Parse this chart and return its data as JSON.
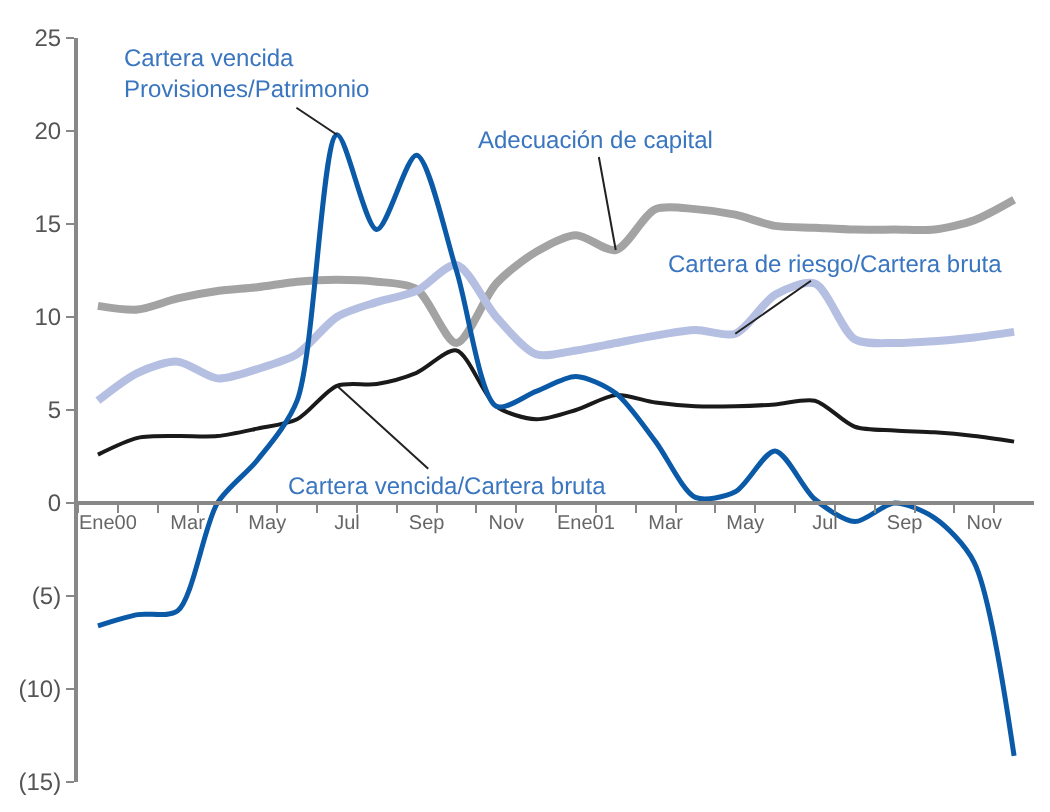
{
  "chart_data": {
    "type": "line",
    "categories": [
      "Ene00",
      null,
      "Mar",
      null,
      "May",
      null,
      "Jul",
      null,
      "Sep",
      null,
      "Nov",
      null,
      "Ene01",
      null,
      "Mar",
      null,
      "May",
      null,
      "Jul",
      null,
      "Sep",
      null,
      "Nov",
      null
    ],
    "series": [
      {
        "name": "Adecuación de capital",
        "color": "#a3a3a3",
        "values": [
          10.6,
          10.4,
          11.0,
          11.4,
          11.6,
          11.9,
          12.0,
          11.9,
          11.5,
          8.6,
          11.8,
          13.5,
          14.4,
          13.6,
          15.8,
          15.8,
          15.5,
          14.9,
          14.8,
          14.7,
          14.7,
          14.7,
          15.2,
          16.3
        ]
      },
      {
        "name": "Cartera de riesgo/Cartera bruta",
        "color": "#b4bfe2",
        "values": [
          5.5,
          7.0,
          7.6,
          6.7,
          7.2,
          8.0,
          10.0,
          10.8,
          11.4,
          12.8,
          10.0,
          8.0,
          8.2,
          8.6,
          9.0,
          9.3,
          9.1,
          11.2,
          11.8,
          8.8,
          8.6,
          8.7,
          8.9,
          9.2
        ]
      },
      {
        "name": "Cartera vencida/Cartera bruta",
        "color": "#1a1a1a",
        "values": [
          2.6,
          3.5,
          3.6,
          3.6,
          4.0,
          4.5,
          6.3,
          6.4,
          7.0,
          8.2,
          5.2,
          4.5,
          5.0,
          5.8,
          5.4,
          5.2,
          5.2,
          5.3,
          5.5,
          4.1,
          3.9,
          3.8,
          3.6,
          3.3
        ]
      },
      {
        "name": "Cartera vencida\nProvisiones/Patrimonio",
        "color": "#0b5aa8",
        "values": [
          -6.6,
          -6.0,
          -5.8,
          0.0,
          2.3,
          5.5,
          19.8,
          14.7,
          18.7,
          12.5,
          5.2,
          6.0,
          6.8,
          5.9,
          3.3,
          0.3,
          0.6,
          2.8,
          0.2,
          -1.0,
          0.0,
          -0.8,
          -3.2,
          -13.6
        ]
      }
    ],
    "ylim": [
      -15,
      25
    ],
    "yticks": [
      25,
      20,
      15,
      10,
      5,
      0,
      {
        "value": -5,
        "label": "(5)"
      },
      {
        "value": -10,
        "label": "(10)"
      },
      {
        "value": -15,
        "label": "(15)"
      }
    ],
    "legend": false,
    "marker": "none",
    "line_style": "solid"
  }
}
